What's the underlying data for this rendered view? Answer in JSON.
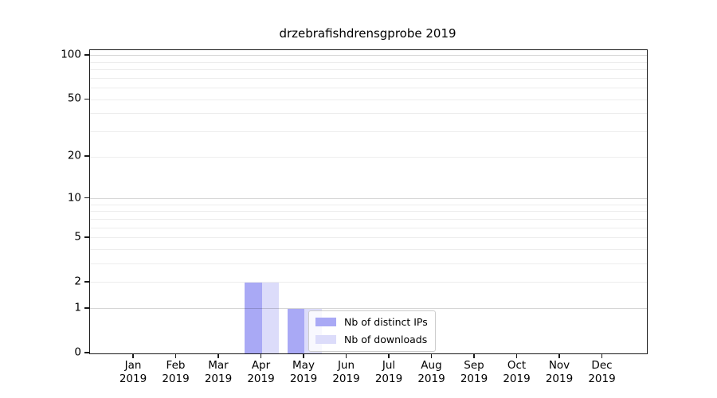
{
  "figure": {
    "background": "#ffffff"
  },
  "chart_data": {
    "type": "bar",
    "title": "drzebrafishdrensgprobe 2019",
    "categories": [
      {
        "month": "Jan",
        "year": "2019"
      },
      {
        "month": "Feb",
        "year": "2019"
      },
      {
        "month": "Mar",
        "year": "2019"
      },
      {
        "month": "Apr",
        "year": "2019"
      },
      {
        "month": "May",
        "year": "2019"
      },
      {
        "month": "Jun",
        "year": "2019"
      },
      {
        "month": "Jul",
        "year": "2019"
      },
      {
        "month": "Aug",
        "year": "2019"
      },
      {
        "month": "Sep",
        "year": "2019"
      },
      {
        "month": "Oct",
        "year": "2019"
      },
      {
        "month": "Nov",
        "year": "2019"
      },
      {
        "month": "Dec",
        "year": "2019"
      }
    ],
    "series": [
      {
        "name": "Nb of distinct IPs",
        "color": "#a9a9f5",
        "values": [
          0,
          0,
          0,
          2,
          1,
          0,
          0,
          0,
          0,
          0,
          0,
          0
        ]
      },
      {
        "name": "Nb of downloads",
        "color": "#dcdcfa",
        "values": [
          0,
          0,
          0,
          2,
          1,
          0,
          0,
          0,
          0,
          0,
          0,
          0
        ]
      }
    ],
    "xlabel": "",
    "ylabel": "",
    "y_axis": {
      "scale": "log1p",
      "ticks": [
        0,
        1,
        2,
        5,
        10,
        20,
        50,
        100
      ],
      "max": 109
    },
    "gridlines": {
      "on": true,
      "major": [
        1,
        10,
        100
      ],
      "minor": [
        2,
        3,
        4,
        5,
        6,
        7,
        8,
        9,
        20,
        30,
        40,
        50,
        60,
        70,
        80,
        90
      ]
    },
    "legend": {
      "position": "lower-left-inside"
    },
    "colors": {
      "axis": "#1a1a1a",
      "grid_minor": "rgba(0,0,0,0.07)",
      "grid_major": "rgba(0,0,0,0.16)",
      "legend_border": "#cccccc"
    }
  }
}
